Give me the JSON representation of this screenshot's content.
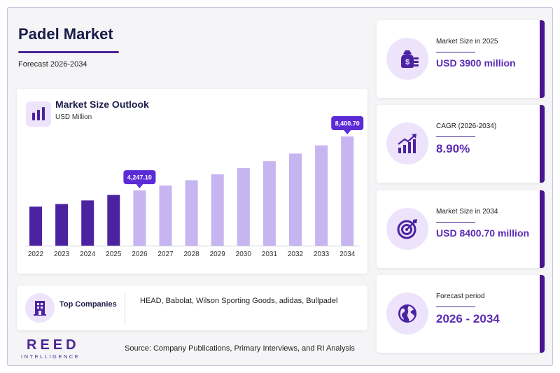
{
  "header": {
    "title": "Padel Market",
    "subtitle": "Forecast 2026-2034"
  },
  "chart": {
    "title": "Market Size Outlook",
    "unit": "USD Million",
    "icon": "bar-chart-icon"
  },
  "chart_data": {
    "type": "bar",
    "title": "Market Size Outlook",
    "ylabel": "USD Million",
    "categories": [
      "2022",
      "2023",
      "2024",
      "2025",
      "2026",
      "2027",
      "2028",
      "2029",
      "2030",
      "2031",
      "2032",
      "2033",
      "2034"
    ],
    "values": [
      3000,
      3200,
      3480,
      3900,
      4247.1,
      4625,
      5036,
      5485,
      5973,
      6504,
      7083,
      7713,
      8400.7
    ],
    "segments": [
      {
        "name": "historical",
        "years": [
          "2022",
          "2023",
          "2024",
          "2025"
        ],
        "color": "#4b23a0"
      },
      {
        "name": "forecast",
        "years": [
          "2026",
          "2027",
          "2028",
          "2029",
          "2030",
          "2031",
          "2032",
          "2033",
          "2034"
        ],
        "color": "#c6b5f0"
      }
    ],
    "data_labels": [
      {
        "category": "2026",
        "text": "4,247.10"
      },
      {
        "category": "2034",
        "text": "8,400.70"
      }
    ],
    "label_color": "#5b2bd6",
    "grid": false,
    "ylim": [
      0,
      8400.7
    ]
  },
  "companies": {
    "label": "Top Companies",
    "list": "HEAD, Babolat, Wilson Sporting Goods, adidas, Bullpadel",
    "icon": "building-icon"
  },
  "footer": {
    "logo_main": "REED",
    "logo_sub": "INTELLIGENCE",
    "source": "Source: Company Publications, Primary Interviews, and RI Analysis"
  },
  "stats": [
    {
      "label": "Market Size in 2025",
      "value": "USD 3900 million",
      "icon": "money-bag-icon"
    },
    {
      "label": "CAGR (2026-2034)",
      "value": "8.90%",
      "icon": "growth-chart-icon"
    },
    {
      "label": "Market Size in 2034",
      "value": "USD 8400.70 million",
      "icon": "target-icon"
    },
    {
      "label": "Forecast period",
      "value": "2026 - 2034",
      "icon": "globe-icon"
    }
  ],
  "colors": {
    "accent": "#4a2597",
    "stat_value": "#5b2bb5",
    "stat_bar": "#4a1590",
    "icon_bg": "#ede4fb"
  }
}
